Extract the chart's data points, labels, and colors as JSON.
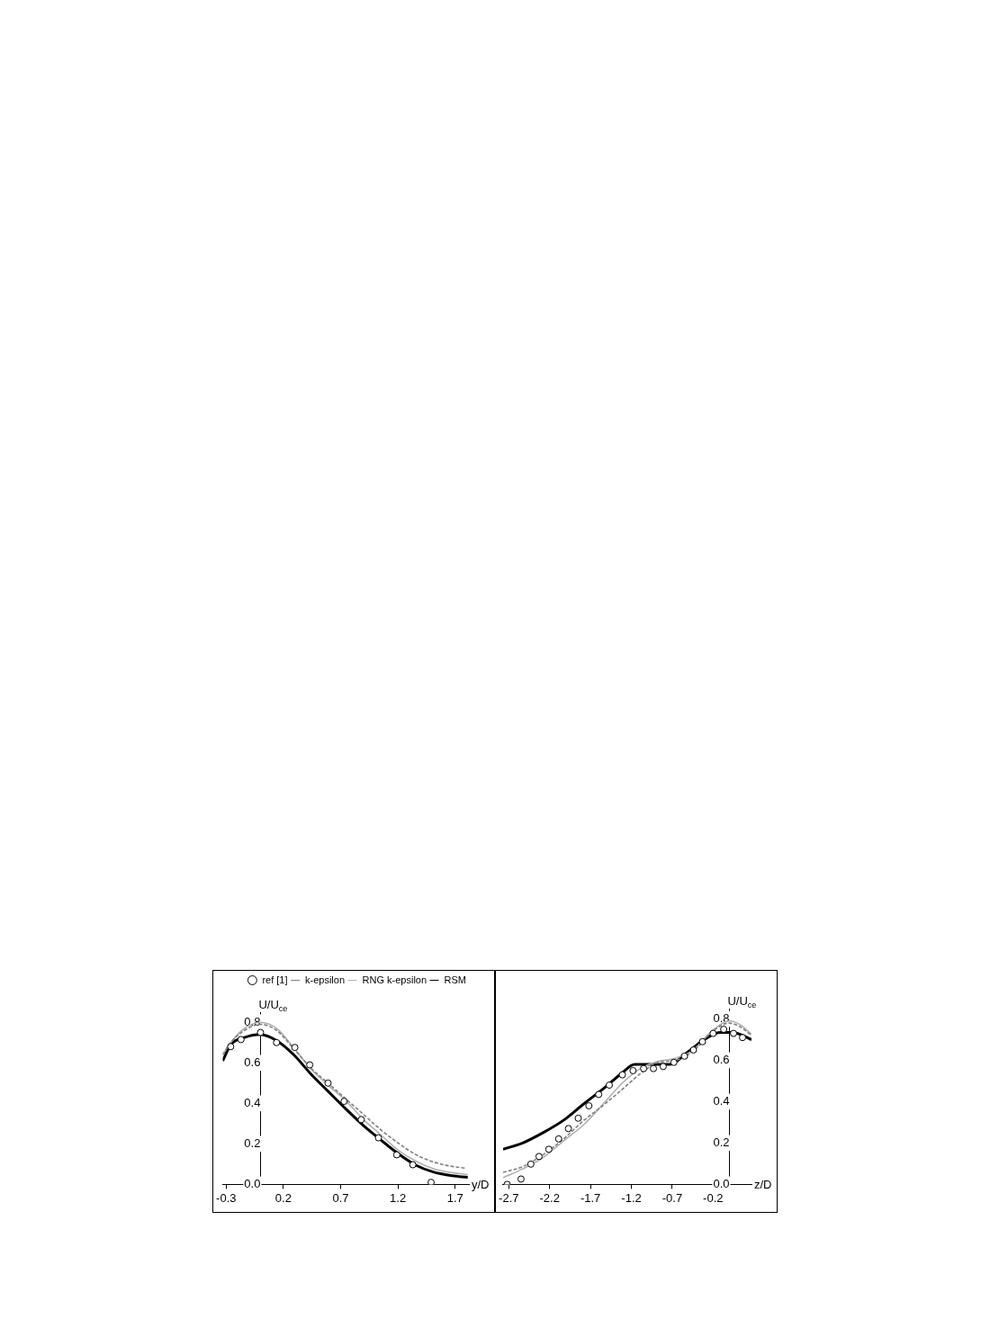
{
  "chart_data": [
    {
      "type": "line",
      "xlabel": "y/D",
      "ylabel": "U/U$_{ce}$",
      "xlim": [
        -0.33,
        1.82
      ],
      "xticks": [
        -0.3,
        0.2,
        0.7,
        1.2,
        1.7
      ],
      "ylim": [
        0,
        0.85
      ],
      "yticks": [
        {
          "value": 0,
          "label": "0.0"
        },
        {
          "value": 0.2,
          "label": "0.2"
        },
        {
          "value": 0.4,
          "label": "0.4"
        },
        {
          "value": 0.6,
          "label": "0.6"
        },
        {
          "value": 0.8,
          "label": "0.8"
        }
      ],
      "grid": false,
      "legend": "top right",
      "series": [
        {
          "name": "ref [1]",
          "type": "scatter",
          "marker": "circle",
          "color": "#000000",
          "x": [
            -0.26,
            -0.17,
            0.0,
            0.14,
            0.3,
            0.43,
            0.59,
            0.73,
            0.88,
            1.03,
            1.19,
            1.33,
            1.49
          ],
          "values": [
            0.68,
            0.715,
            0.75,
            0.7,
            0.676,
            0.59,
            0.5,
            0.41,
            0.32,
            0.23,
            0.146,
            0.097,
            0.01
          ]
        },
        {
          "name": "k-epsilon",
          "type": "line",
          "line_style": "dashed",
          "marker": "none",
          "color": "#808080",
          "x": [
            -0.33,
            -0.26,
            -0.14,
            0.0,
            0.14,
            0.29,
            0.44,
            0.59,
            0.75,
            0.9,
            1.05,
            1.2,
            1.36,
            1.51,
            1.66,
            1.79
          ],
          "values": [
            0.64,
            0.7,
            0.76,
            0.79,
            0.76,
            0.67,
            0.575,
            0.5,
            0.42,
            0.345,
            0.27,
            0.205,
            0.146,
            0.111,
            0.09,
            0.08
          ]
        },
        {
          "name": "RNG k-epsilon",
          "type": "line",
          "line_style": "solid",
          "marker": "none",
          "color": "#b0b0b0",
          "x": [
            -0.33,
            -0.26,
            -0.14,
            0.0,
            0.14,
            0.29,
            0.44,
            0.59,
            0.75,
            0.9,
            1.05,
            1.2,
            1.36,
            1.51,
            1.66,
            1.81
          ],
          "values": [
            0.64,
            0.7,
            0.77,
            0.8,
            0.77,
            0.675,
            0.57,
            0.49,
            0.41,
            0.32,
            0.245,
            0.17,
            0.114,
            0.077,
            0.059,
            0.048
          ]
        },
        {
          "name": "RSM",
          "type": "line",
          "line_style": "solid",
          "marker": "none",
          "color": "#000000",
          "x": [
            -0.33,
            -0.26,
            -0.14,
            0.0,
            0.14,
            0.29,
            0.44,
            0.59,
            0.75,
            0.9,
            1.05,
            1.2,
            1.36,
            1.51,
            1.66,
            1.81
          ],
          "values": [
            0.61,
            0.69,
            0.725,
            0.74,
            0.71,
            0.64,
            0.545,
            0.46,
            0.37,
            0.29,
            0.22,
            0.153,
            0.094,
            0.061,
            0.044,
            0.035
          ]
        }
      ]
    },
    {
      "type": "line",
      "xlabel": "z/D",
      "ylabel": "U/U$_{ce}$",
      "xlim": [
        -2.77,
        0.27
      ],
      "xticks": [
        -2.7,
        -2.2,
        -1.7,
        -1.2,
        -0.7,
        -0.2
      ],
      "ylim": [
        0,
        0.85
      ],
      "yticks": [
        {
          "value": 0,
          "label": "0.0"
        },
        {
          "value": 0.2,
          "label": "0.2"
        },
        {
          "value": 0.4,
          "label": "0.4"
        },
        {
          "value": 0.6,
          "label": "0.6"
        },
        {
          "value": 0.8,
          "label": "0.8"
        }
      ],
      "grid": false,
      "series": [
        {
          "type": "scatter",
          "marker": "circle",
          "color": "#000000",
          "x": [
            -2.72,
            -2.55,
            -2.43,
            -2.33,
            -2.21,
            -2.09,
            -1.97,
            -1.85,
            -1.72,
            -1.6,
            -1.47,
            -1.31,
            -1.18,
            -1.05,
            -0.93,
            -0.81,
            -0.68,
            -0.55,
            -0.44,
            -0.33,
            -0.2,
            -0.07,
            0.05,
            0.16
          ],
          "values": [
            0.0,
            0.026,
            0.098,
            0.135,
            0.17,
            0.22,
            0.27,
            0.32,
            0.38,
            0.435,
            0.48,
            0.53,
            0.55,
            0.56,
            0.56,
            0.57,
            0.59,
            0.62,
            0.65,
            0.69,
            0.73,
            0.75,
            0.73,
            0.71
          ]
        },
        {
          "type": "line",
          "line_style": "dashed",
          "marker": "none",
          "color": "#808080",
          "x": [
            -2.77,
            -2.53,
            -2.28,
            -2.03,
            -1.78,
            -1.52,
            -1.31,
            -1.09,
            -0.87,
            -0.66,
            -0.44,
            -0.22,
            0.0,
            0.14,
            0.27
          ],
          "values": [
            0.058,
            0.086,
            0.144,
            0.22,
            0.31,
            0.39,
            0.46,
            0.535,
            0.59,
            0.6,
            0.645,
            0.735,
            0.78,
            0.76,
            0.72
          ]
        },
        {
          "type": "line",
          "line_style": "solid",
          "marker": "none",
          "color": "#b0b0b0",
          "x": [
            -2.77,
            -2.53,
            -2.28,
            -2.03,
            -1.78,
            -1.52,
            -1.31,
            -1.09,
            -0.87,
            -0.66,
            -0.44,
            -0.22,
            0.0,
            0.14,
            0.27
          ],
          "values": [
            0.032,
            0.075,
            0.13,
            0.21,
            0.29,
            0.4,
            0.49,
            0.56,
            0.595,
            0.61,
            0.65,
            0.74,
            0.79,
            0.77,
            0.725
          ]
        },
        {
          "type": "line",
          "line_style": "solid",
          "marker": "none",
          "color": "#000000",
          "x": [
            -2.77,
            -2.53,
            -2.28,
            -2.03,
            -1.78,
            -1.52,
            -1.31,
            -1.16,
            -0.94,
            -0.73,
            -0.51,
            -0.29,
            -0.11,
            0.04,
            0.27
          ],
          "values": [
            0.17,
            0.2,
            0.25,
            0.31,
            0.39,
            0.47,
            0.54,
            0.58,
            0.58,
            0.58,
            0.64,
            0.705,
            0.735,
            0.735,
            0.7
          ]
        }
      ]
    }
  ]
}
